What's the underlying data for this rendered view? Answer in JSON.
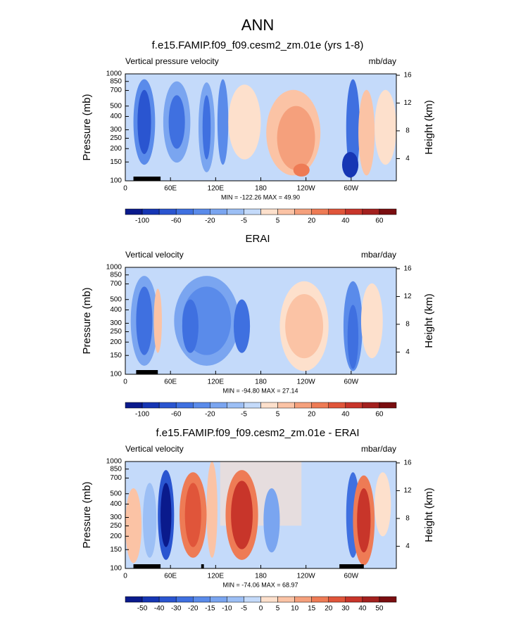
{
  "title": "ANN",
  "chart_data": [
    {
      "type": "contour",
      "title": "f.e15.FAMIP.f09_f09.cesm2_zm.01e (yrs 1-8)",
      "left_label": "Vertical pressure velocity",
      "right_label": "mb/day",
      "ylabel": "Pressure (mb)",
      "y2label": "Height (km)",
      "annotation": "MIN = -122.26  MAX =  49.90",
      "xlim": [
        0,
        360
      ],
      "xticks": [
        0,
        {
          "value": 60,
          "label": "60E"
        },
        {
          "value": 120,
          "label": "120E"
        },
        180,
        {
          "value": 240,
          "label": "120W"
        },
        {
          "value": 300,
          "label": "60W"
        }
      ],
      "ylim": [
        100,
        1000
      ],
      "log_scale": true,
      "yticks": [
        100,
        150,
        200,
        250,
        300,
        400,
        500,
        700,
        850,
        1000
      ],
      "y2lim": [
        0.8,
        16.2
      ],
      "y2ticks": [
        4,
        8,
        12,
        16
      ],
      "colorbar_ticks": [
        -100,
        null,
        -60,
        null,
        -20,
        null,
        -5,
        null,
        5,
        null,
        20,
        null,
        40,
        null,
        60
      ],
      "colors": [
        "#0a1a8c",
        "#1636b4",
        "#2a55d0",
        "#3f70e0",
        "#5a8bea",
        "#7aa5f0",
        "#9cbff5",
        "#c4dafa",
        "#fde0cc",
        "#fbc3a5",
        "#f5a07c",
        "#ee7b55",
        "#e0553a",
        "#c8352a",
        "#a3201e",
        "#7a0e10"
      ]
    },
    {
      "type": "contour",
      "title": "ERAI",
      "left_label": "Vertical velocity",
      "right_label": "mbar/day",
      "ylabel": "Pressure (mb)",
      "y2label": "Height (km)",
      "annotation": "MIN = -94.80  MAX =  27.14",
      "xlim": [
        0,
        360
      ],
      "xticks": [
        0,
        {
          "value": 60,
          "label": "60E"
        },
        {
          "value": 120,
          "label": "120E"
        },
        180,
        {
          "value": 240,
          "label": "120W"
        },
        {
          "value": 300,
          "label": "60W"
        }
      ],
      "ylim": [
        100,
        1000
      ],
      "log_scale": true,
      "yticks": [
        100,
        150,
        200,
        250,
        300,
        400,
        500,
        700,
        850,
        1000
      ],
      "y2lim": [
        0.8,
        16.2
      ],
      "y2ticks": [
        4,
        8,
        12,
        16
      ],
      "colorbar_ticks": [
        -100,
        null,
        -60,
        null,
        -20,
        null,
        -5,
        null,
        5,
        null,
        20,
        null,
        40,
        null,
        60
      ],
      "colors": [
        "#0a1a8c",
        "#1636b4",
        "#2a55d0",
        "#3f70e0",
        "#5a8bea",
        "#7aa5f0",
        "#9cbff5",
        "#c4dafa",
        "#fde0cc",
        "#fbc3a5",
        "#f5a07c",
        "#ee7b55",
        "#e0553a",
        "#c8352a",
        "#a3201e",
        "#7a0e10"
      ]
    },
    {
      "type": "contour",
      "title": "f.e15.FAMIP.f09_f09.cesm2_zm.01e - ERAI",
      "left_label": "Vertical velocity",
      "right_label": "mbar/day",
      "ylabel": "Pressure (mb)",
      "y2label": "Height (km)",
      "annotation": "MIN = -74.06  MAX =  68.97",
      "xlim": [
        0,
        360
      ],
      "xticks": [
        0,
        {
          "value": 60,
          "label": "60E"
        },
        {
          "value": 120,
          "label": "120E"
        },
        180,
        {
          "value": 240,
          "label": "120W"
        },
        {
          "value": 300,
          "label": "60W"
        }
      ],
      "ylim": [
        100,
        1000
      ],
      "log_scale": true,
      "yticks": [
        100,
        150,
        200,
        250,
        300,
        400,
        500,
        700,
        850,
        1000
      ],
      "y2lim": [
        0.8,
        16.2
      ],
      "y2ticks": [
        4,
        8,
        12,
        16
      ],
      "colorbar_ticks": [
        -50,
        -40,
        -30,
        -20,
        -15,
        -10,
        -5,
        0,
        5,
        10,
        15,
        20,
        30,
        40,
        50
      ],
      "colors": [
        "#0a1a8c",
        "#1636b4",
        "#2a55d0",
        "#3f70e0",
        "#5a8bea",
        "#7aa5f0",
        "#9cbff5",
        "#c4dafa",
        "#fde0cc",
        "#fbc3a5",
        "#f5a07c",
        "#ee7b55",
        "#e0553a",
        "#c8352a",
        "#a3201e",
        "#7a0e10"
      ]
    }
  ]
}
